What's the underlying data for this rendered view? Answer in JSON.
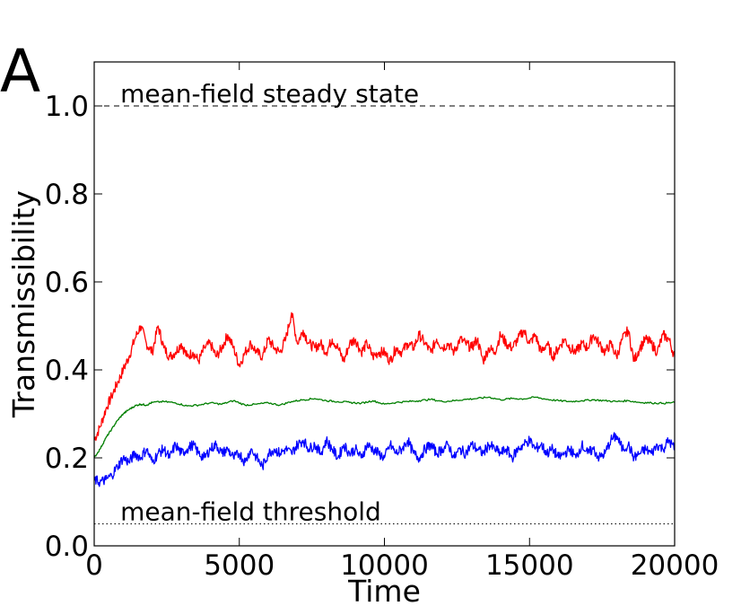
{
  "panel_label": "A",
  "chart_data": {
    "type": "line",
    "xlabel": "Time",
    "ylabel": "Transmissibility",
    "xlim": [
      0,
      20000
    ],
    "ylim": [
      0.0,
      1.1
    ],
    "xticks": [
      0,
      5000,
      10000,
      15000,
      20000
    ],
    "xtick_labels": [
      "0",
      "5000",
      "10000",
      "15000",
      "20000"
    ],
    "yticks": [
      0.0,
      0.2,
      0.4,
      0.6,
      0.8,
      1.0
    ],
    "ytick_labels": [
      "0.0",
      "0.2",
      "0.4",
      "0.6",
      "0.8",
      "1.0"
    ],
    "reference_lines": [
      {
        "name": "steady-state-line",
        "y": 1.0,
        "style": "dashed",
        "label": "mean-field steady state",
        "label_x": 900
      },
      {
        "name": "threshold-line",
        "y": 0.05,
        "style": "dotted",
        "label": "mean-field threshold",
        "label_x": 900
      }
    ],
    "series": [
      {
        "name": "red",
        "color": "#ff0000",
        "x": [
          0,
          200,
          400,
          600,
          800,
          1000,
          1200,
          1400,
          1600,
          1800,
          2000,
          2200,
          2400,
          2600,
          2800,
          3000,
          3200,
          3400,
          3600,
          3800,
          4000,
          4200,
          4400,
          4600,
          4800,
          5000,
          5200,
          5400,
          5600,
          5800,
          6000,
          6200,
          6400,
          6600,
          6800,
          7000,
          7200,
          7400,
          7600,
          7800,
          8000,
          8200,
          8400,
          8600,
          8800,
          9000,
          9200,
          9400,
          9600,
          9800,
          10000,
          10200,
          10400,
          10600,
          10800,
          11000,
          11200,
          11400,
          11600,
          11800,
          12000,
          12200,
          12400,
          12600,
          12800,
          13000,
          13200,
          13400,
          13600,
          13800,
          14000,
          14200,
          14400,
          14600,
          14800,
          15000,
          15200,
          15400,
          15600,
          15800,
          16000,
          16200,
          16400,
          16600,
          16800,
          17000,
          17200,
          17400,
          17600,
          17800,
          18000,
          18200,
          18400,
          18600,
          18800,
          19000,
          19200,
          19400,
          19600,
          19800,
          20000
        ],
        "values": [
          0.24,
          0.27,
          0.31,
          0.34,
          0.37,
          0.4,
          0.43,
          0.47,
          0.5,
          0.46,
          0.44,
          0.5,
          0.45,
          0.43,
          0.44,
          0.46,
          0.43,
          0.44,
          0.42,
          0.45,
          0.46,
          0.43,
          0.45,
          0.48,
          0.45,
          0.41,
          0.44,
          0.46,
          0.44,
          0.43,
          0.47,
          0.45,
          0.44,
          0.47,
          0.53,
          0.46,
          0.49,
          0.46,
          0.45,
          0.46,
          0.44,
          0.47,
          0.45,
          0.42,
          0.46,
          0.47,
          0.44,
          0.46,
          0.43,
          0.44,
          0.44,
          0.42,
          0.45,
          0.44,
          0.46,
          0.45,
          0.48,
          0.46,
          0.44,
          0.47,
          0.45,
          0.46,
          0.44,
          0.47,
          0.46,
          0.45,
          0.47,
          0.42,
          0.45,
          0.44,
          0.48,
          0.46,
          0.45,
          0.47,
          0.49,
          0.46,
          0.48,
          0.44,
          0.46,
          0.43,
          0.45,
          0.47,
          0.45,
          0.44,
          0.46,
          0.45,
          0.48,
          0.46,
          0.44,
          0.46,
          0.43,
          0.47,
          0.49,
          0.42,
          0.45,
          0.47,
          0.46,
          0.44,
          0.48,
          0.47,
          0.43
        ]
      },
      {
        "name": "green",
        "color": "#007f00",
        "x": [
          0,
          200,
          400,
          600,
          800,
          1000,
          1200,
          1400,
          1600,
          1800,
          2000,
          2400,
          2800,
          3200,
          3600,
          4000,
          4400,
          4800,
          5200,
          5600,
          6000,
          6400,
          6800,
          7200,
          7600,
          8000,
          8400,
          8800,
          9200,
          9600,
          10000,
          10400,
          10800,
          11200,
          11600,
          12000,
          12400,
          12800,
          13200,
          13600,
          14000,
          14400,
          14800,
          15200,
          15600,
          16000,
          16400,
          16800,
          17200,
          17600,
          18000,
          18400,
          18800,
          19200,
          19600,
          20000
        ],
        "values": [
          0.2,
          0.22,
          0.245,
          0.265,
          0.285,
          0.3,
          0.31,
          0.318,
          0.322,
          0.32,
          0.326,
          0.328,
          0.325,
          0.318,
          0.32,
          0.325,
          0.322,
          0.33,
          0.32,
          0.322,
          0.325,
          0.32,
          0.328,
          0.332,
          0.335,
          0.33,
          0.328,
          0.326,
          0.324,
          0.33,
          0.322,
          0.326,
          0.328,
          0.33,
          0.333,
          0.328,
          0.33,
          0.333,
          0.335,
          0.338,
          0.332,
          0.335,
          0.334,
          0.338,
          0.333,
          0.33,
          0.328,
          0.33,
          0.332,
          0.33,
          0.328,
          0.33,
          0.326,
          0.325,
          0.324,
          0.326
        ]
      },
      {
        "name": "blue",
        "color": "#0000ff",
        "x": [
          0,
          200,
          400,
          600,
          800,
          1000,
          1200,
          1400,
          1600,
          1800,
          2000,
          2200,
          2400,
          2600,
          2800,
          3000,
          3200,
          3400,
          3600,
          3800,
          4000,
          4200,
          4400,
          4600,
          4800,
          5000,
          5200,
          5400,
          5600,
          5800,
          6000,
          6200,
          6400,
          6600,
          6800,
          7000,
          7200,
          7400,
          7600,
          7800,
          8000,
          8200,
          8400,
          8600,
          8800,
          9000,
          9200,
          9400,
          9600,
          9800,
          10000,
          10200,
          10400,
          10600,
          10800,
          11000,
          11200,
          11400,
          11600,
          11800,
          12000,
          12200,
          12400,
          12600,
          12800,
          13000,
          13200,
          13400,
          13600,
          13800,
          14000,
          14200,
          14400,
          14600,
          14800,
          15000,
          15200,
          15400,
          15600,
          15800,
          16000,
          16200,
          16400,
          16600,
          16800,
          17000,
          17200,
          17400,
          17600,
          17800,
          18000,
          18200,
          18400,
          18600,
          18800,
          19000,
          19200,
          19400,
          19600,
          19800,
          20000
        ],
        "values": [
          0.15,
          0.145,
          0.15,
          0.16,
          0.18,
          0.2,
          0.19,
          0.21,
          0.2,
          0.22,
          0.19,
          0.21,
          0.22,
          0.2,
          0.23,
          0.21,
          0.22,
          0.23,
          0.21,
          0.2,
          0.22,
          0.23,
          0.21,
          0.22,
          0.2,
          0.21,
          0.19,
          0.22,
          0.2,
          0.18,
          0.21,
          0.22,
          0.21,
          0.22,
          0.21,
          0.23,
          0.24,
          0.22,
          0.23,
          0.21,
          0.24,
          0.22,
          0.2,
          0.23,
          0.21,
          0.22,
          0.2,
          0.23,
          0.22,
          0.21,
          0.2,
          0.23,
          0.21,
          0.22,
          0.24,
          0.21,
          0.2,
          0.22,
          0.23,
          0.21,
          0.22,
          0.23,
          0.2,
          0.22,
          0.21,
          0.23,
          0.22,
          0.21,
          0.23,
          0.22,
          0.21,
          0.22,
          0.2,
          0.22,
          0.23,
          0.24,
          0.22,
          0.23,
          0.21,
          0.22,
          0.2,
          0.21,
          0.22,
          0.2,
          0.23,
          0.21,
          0.22,
          0.2,
          0.21,
          0.24,
          0.25,
          0.22,
          0.23,
          0.2,
          0.21,
          0.22,
          0.21,
          0.23,
          0.22,
          0.24,
          0.22
        ]
      }
    ]
  }
}
